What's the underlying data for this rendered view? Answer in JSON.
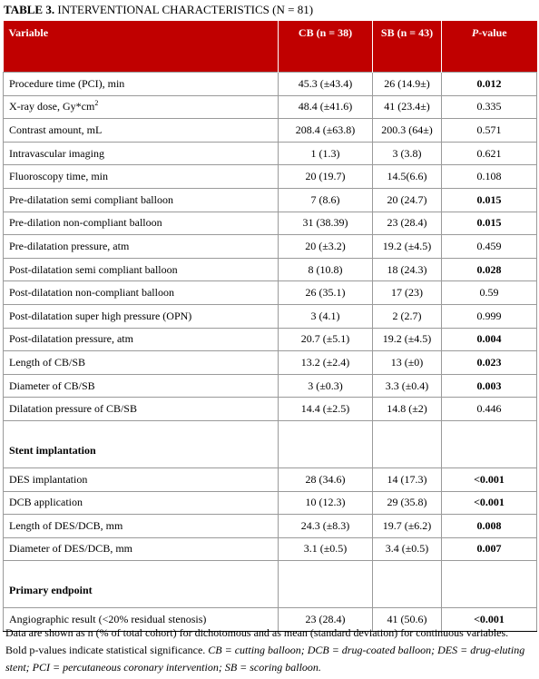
{
  "caption": {
    "number": "TABLE 3.",
    "text": "INTERVENTIONAL CHARACTERISTICS (N = 81)"
  },
  "header": {
    "variable": "Variable",
    "cb": "CB (n = 38)",
    "sb": "SB (n = 43)",
    "p_prefix": "P",
    "p_suffix": "-value"
  },
  "rows": [
    {
      "label": "Procedure time (PCI), min",
      "cb": "45.3 (±43.4)",
      "sb": "26 (14.9±)",
      "p": "0.012",
      "sig": true
    },
    {
      "label": "X-ray dose, Gy*cm",
      "label_sup": "2",
      "cb": "48.4 (±41.6)",
      "sb": "41 (23.4±)",
      "p": "0.335",
      "sig": false
    },
    {
      "label": "Contrast amount, mL",
      "cb": "208.4 (±63.8)",
      "sb": "200.3 (64±)",
      "p": "0.571",
      "sig": false
    },
    {
      "label": "Intravascular imaging",
      "cb": "1 (1.3)",
      "sb": "3 (3.8)",
      "p": "0.621",
      "sig": false
    },
    {
      "label": "Fluoroscopy time, min",
      "cb": "20 (19.7)",
      "sb": "14.5(6.6)",
      "p": "0.108",
      "sig": false
    },
    {
      "label": "Pre-dilatation semi compliant balloon",
      "cb": "7 (8.6)",
      "sb": "20 (24.7)",
      "p": "0.015",
      "sig": true
    },
    {
      "label": "Pre-dilation non-compliant balloon",
      "cb": "31 (38.39)",
      "sb": "23 (28.4)",
      "p": "0.015",
      "sig": true
    },
    {
      "label": "Pre-dilatation pressure, atm",
      "cb": "20 (±3.2)",
      "sb": "19.2 (±4.5)",
      "p": "0.459",
      "sig": false
    },
    {
      "label": "Post-dilatation semi compliant balloon",
      "cb": "8 (10.8)",
      "sb": "18 (24.3)",
      "p": "0.028",
      "sig": true
    },
    {
      "label": "Post-dilatation non-compliant balloon",
      "cb": "26 (35.1)",
      "sb": "17 (23)",
      "p": "0.59",
      "sig": false
    },
    {
      "label": "Post-dilatation super high pressure (OPN)",
      "cb": "3 (4.1)",
      "sb": "2 (2.7)",
      "p": "0.999",
      "sig": false
    },
    {
      "label": "Post-dilatation pressure, atm",
      "cb": "20.7 (±5.1)",
      "sb": "19.2 (±4.5)",
      "p": "0.004",
      "sig": true
    },
    {
      "label": "Length of CB/SB",
      "cb": "13.2 (±2.4)",
      "sb": "13 (±0)",
      "p": "0.023",
      "sig": true
    },
    {
      "label": "Diameter of CB/SB",
      "cb": "3 (±0.3)",
      "sb": "3.3 (±0.4)",
      "p": "0.003",
      "sig": true
    },
    {
      "label": "Dilatation pressure of CB/SB",
      "cb": "14.4 (±2.5)",
      "sb": "14.8 (±2)",
      "p": "0.446",
      "sig": false
    },
    {
      "section": "Stent implantation"
    },
    {
      "label": "DES implantation",
      "cb": "28 (34.6)",
      "sb": "14 (17.3)",
      "p": "<0.001",
      "sig": true
    },
    {
      "label": "DCB application",
      "cb": "10 (12.3)",
      "sb": "29 (35.8)",
      "p": "<0.001",
      "sig": true
    },
    {
      "label": "Length of DES/DCB, mm",
      "cb": "24.3 (±8.3)",
      "sb": "19.7 (±6.2)",
      "p": "0.008",
      "sig": true
    },
    {
      "label": "Diameter of DES/DCB, mm",
      "cb": "3.1 (±0.5)",
      "sb": "3.4 (±0.5)",
      "p": "0.007",
      "sig": true
    },
    {
      "section": "Primary endpoint"
    },
    {
      "label": "Angiographic result (<20% residual stenosis)",
      "cb": "23 (28.4)",
      "sb": "41 (50.6)",
      "p": "<0.001",
      "sig": true
    }
  ],
  "footnote": {
    "line1": "Data are shown as n (% of total cohort) for dichotomous and as mean (standard deviation) for continuous variables.",
    "line2_plain": "Bold p-values indicate statistical significance. ",
    "line2_italic": "CB = cutting balloon; DCB = drug-coated balloon; DES = drug-eluting",
    "line3_italic": "stent; PCI = percutaneous coronary intervention; SB = scoring balloon."
  }
}
